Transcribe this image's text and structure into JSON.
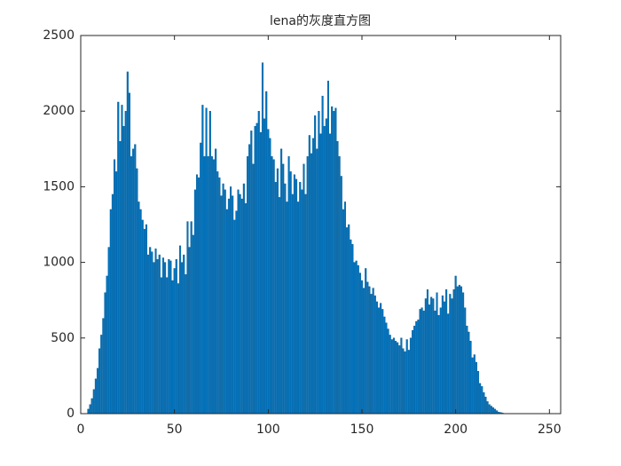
{
  "chart_data": {
    "type": "bar",
    "title": "lena的灰度直方图",
    "color": "#0072bd",
    "x": [
      0,
      1,
      2,
      3,
      4,
      5,
      6,
      7,
      8,
      9,
      10,
      11,
      12,
      13,
      14,
      15,
      16,
      17,
      18,
      19,
      20,
      21,
      22,
      23,
      24,
      25,
      26,
      27,
      28,
      29,
      30,
      31,
      32,
      33,
      34,
      35,
      36,
      37,
      38,
      39,
      40,
      41,
      42,
      43,
      44,
      45,
      46,
      47,
      48,
      49,
      50,
      51,
      52,
      53,
      54,
      55,
      56,
      57,
      58,
      59,
      60,
      61,
      62,
      63,
      64,
      65,
      66,
      67,
      68,
      69,
      70,
      71,
      72,
      73,
      74,
      75,
      76,
      77,
      78,
      79,
      80,
      81,
      82,
      83,
      84,
      85,
      86,
      87,
      88,
      89,
      90,
      91,
      92,
      93,
      94,
      95,
      96,
      97,
      98,
      99,
      100,
      101,
      102,
      103,
      104,
      105,
      106,
      107,
      108,
      109,
      110,
      111,
      112,
      113,
      114,
      115,
      116,
      117,
      118,
      119,
      120,
      121,
      122,
      123,
      124,
      125,
      126,
      127,
      128,
      129,
      130,
      131,
      132,
      133,
      134,
      135,
      136,
      137,
      138,
      139,
      140,
      141,
      142,
      143,
      144,
      145,
      146,
      147,
      148,
      149,
      150,
      151,
      152,
      153,
      154,
      155,
      156,
      157,
      158,
      159,
      160,
      161,
      162,
      163,
      164,
      165,
      166,
      167,
      168,
      169,
      170,
      171,
      172,
      173,
      174,
      175,
      176,
      177,
      178,
      179,
      180,
      181,
      182,
      183,
      184,
      185,
      186,
      187,
      188,
      189,
      190,
      191,
      192,
      193,
      194,
      195,
      196,
      197,
      198,
      199,
      200,
      201,
      202,
      203,
      204,
      205,
      206,
      207,
      208,
      209,
      210,
      211,
      212,
      213,
      214,
      215,
      216,
      217,
      218,
      219,
      220,
      221,
      222,
      223,
      224,
      225,
      226,
      227,
      228,
      229,
      230,
      231,
      232,
      233,
      234,
      235,
      236,
      237,
      238,
      239,
      240,
      241,
      242,
      243,
      244,
      245,
      246,
      247,
      248,
      249,
      250,
      251,
      252,
      253,
      254,
      255
    ],
    "values": [
      0,
      0,
      0,
      0,
      30,
      60,
      100,
      160,
      230,
      300,
      430,
      520,
      630,
      800,
      910,
      1100,
      1350,
      1450,
      1680,
      1600,
      2060,
      1800,
      2040,
      1900,
      2000,
      2260,
      2120,
      1700,
      1750,
      1780,
      1620,
      1400,
      1350,
      1280,
      1220,
      1250,
      1050,
      1100,
      1070,
      1000,
      1090,
      1020,
      1050,
      900,
      1030,
      1000,
      900,
      1020,
      1010,
      880,
      960,
      1020,
      860,
      1110,
      1000,
      1050,
      920,
      1270,
      1100,
      1270,
      1180,
      1480,
      1580,
      1560,
      1790,
      2040,
      1700,
      2020,
      1700,
      2000,
      1700,
      1680,
      1750,
      1600,
      1560,
      1440,
      1520,
      1480,
      1350,
      1420,
      1500,
      1440,
      1280,
      1340,
      1480,
      1450,
      1420,
      1520,
      1390,
      1700,
      1780,
      1870,
      1650,
      1900,
      1920,
      2000,
      1860,
      2320,
      1950,
      2130,
      1880,
      1820,
      1700,
      1680,
      1530,
      1620,
      1430,
      1750,
      1650,
      1520,
      1400,
      1700,
      1600,
      1450,
      1580,
      1550,
      1400,
      1530,
      1480,
      1650,
      1450,
      1700,
      1840,
      1720,
      1820,
      1970,
      1750,
      2000,
      1850,
      2100,
      1900,
      1950,
      2200,
      1850,
      2030,
      2000,
      2020,
      1800,
      1700,
      1570,
      1350,
      1400,
      1230,
      1250,
      1150,
      1120,
      1000,
      1010,
      980,
      930,
      880,
      830,
      960,
      870,
      840,
      790,
      830,
      780,
      740,
      700,
      730,
      690,
      640,
      600,
      560,
      520,
      490,
      500,
      480,
      470,
      450,
      500,
      430,
      410,
      490,
      420,
      500,
      550,
      580,
      610,
      620,
      690,
      700,
      680,
      760,
      820,
      720,
      770,
      760,
      680,
      800,
      650,
      700,
      780,
      740,
      820,
      660,
      790,
      760,
      820,
      910,
      840,
      850,
      840,
      800,
      700,
      580,
      540,
      480,
      370,
      390,
      340,
      280,
      200,
      180,
      140,
      110,
      80,
      60,
      50,
      40,
      30,
      20,
      10,
      8,
      5,
      0,
      0,
      0,
      0,
      0,
      0,
      0,
      0,
      0,
      0,
      0,
      0,
      0,
      0,
      0,
      0,
      0,
      0,
      0,
      0,
      0,
      0,
      0,
      0,
      0,
      0,
      0,
      0,
      0,
      0
    ],
    "xlim": [
      0,
      256
    ],
    "xticks": [
      0,
      50,
      100,
      150,
      200,
      250
    ],
    "ylim": [
      0,
      2500
    ],
    "yticks": [
      0,
      500,
      1000,
      1500,
      2000,
      2500
    ]
  }
}
